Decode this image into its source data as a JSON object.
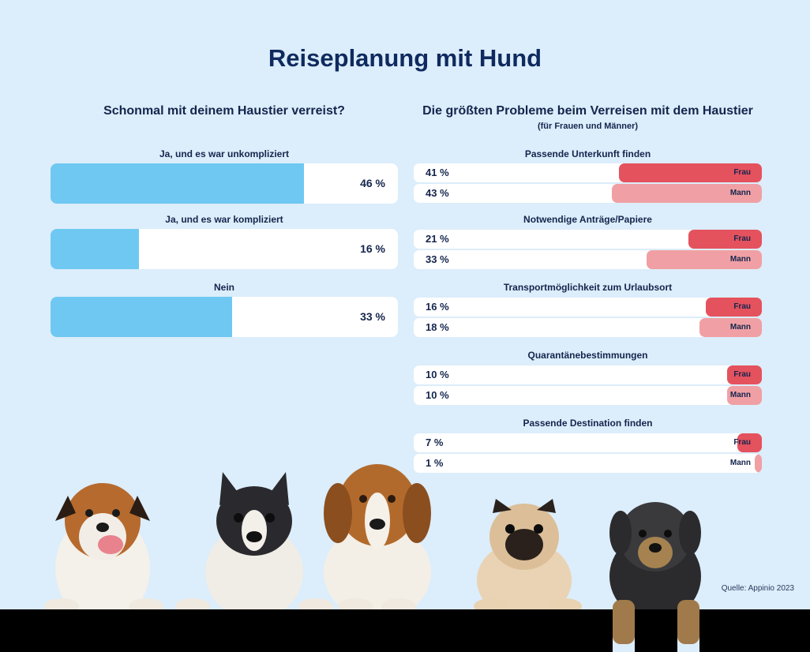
{
  "title": "Reiseplanung mit Hund",
  "left": {
    "heading": "Schonmal mit deinem Haustier verreist?"
  },
  "right": {
    "heading": "Die größten Probleme beim Verreisen mit dem Haustier",
    "subheading": "(für Frauen und Männer)",
    "frau_label": "Frau",
    "mann_label": "Mann"
  },
  "source": "Quelle: Appinio 2023",
  "colors": {
    "background": "#dcedfb",
    "left_bar": "#6ec8f2",
    "frau": "#e4525e",
    "mann": "#f0a0a4",
    "title": "#0f2a5e"
  },
  "chart_data": [
    {
      "type": "bar",
      "title": "Schonmal mit deinem Haustier verreist?",
      "categories": [
        "Ja, und es war unkompliziert",
        "Ja, und es war kompliziert",
        "Nein"
      ],
      "values": [
        46,
        16,
        33
      ],
      "value_labels": [
        "46 %",
        "16 %",
        "33 %"
      ],
      "xlim": [
        0,
        63
      ]
    },
    {
      "type": "bar",
      "title": "Die größten Probleme beim Verreisen mit dem Haustier",
      "subtitle": "(für Frauen und Männer)",
      "categories": [
        "Passende Unterkunft finden",
        "Notwendige Anträge/Papiere",
        "Transportmöglichkeit zum Urlaubsort",
        "Quarantänebestimmungen",
        "Passende Destination finden"
      ],
      "series": [
        {
          "name": "Frau",
          "values": [
            41,
            21,
            16,
            10,
            7
          ],
          "labels": [
            "41 %",
            "21 %",
            "16 %",
            "10 %",
            "7 %"
          ]
        },
        {
          "name": "Mann",
          "values": [
            43,
            33,
            18,
            10,
            1
          ],
          "labels": [
            "43 %",
            "33 %",
            "18 %",
            "10 %",
            "1 %"
          ]
        }
      ],
      "xlim": [
        0,
        100
      ]
    }
  ]
}
